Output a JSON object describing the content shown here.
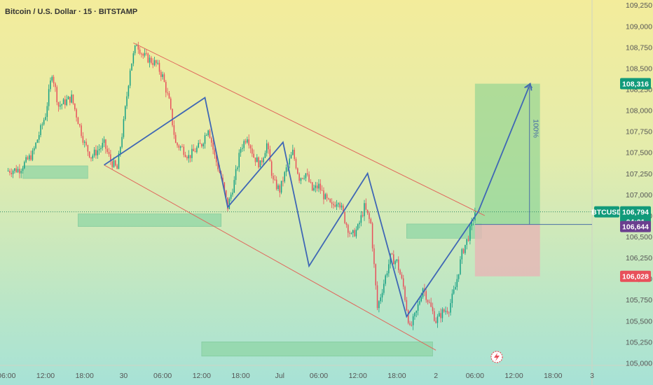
{
  "header": {
    "title": "Bitcoin / U.S. Dollar · 15 · BITSTAMP"
  },
  "colors": {
    "up": "#16a085",
    "down": "#e8505b",
    "channel": "#e0675c",
    "zigzag": "#3f67b5",
    "zone": "#8fd6a6",
    "target": "#7ecf8e",
    "stop": "#e7b5b5"
  },
  "chart_data": {
    "type": "candlestick",
    "symbol": "BTCUSD",
    "y_axis": {
      "ticks": [
        109250,
        109000,
        108750,
        108500,
        108250,
        108000,
        107750,
        107500,
        107250,
        107000,
        106750,
        106500,
        106250,
        106000,
        105750,
        105500,
        105250,
        105000
      ],
      "ylim": [
        104970,
        109310
      ]
    },
    "x_axis": {
      "labels": [
        "06:00",
        "12:00",
        "18:00",
        "30",
        "06:00",
        "12:00",
        "18:00",
        "Jul",
        "06:00",
        "12:00",
        "18:00",
        "2",
        "06:00",
        "12:00",
        "18:00",
        "3"
      ],
      "positions": [
        0,
        6,
        12,
        18,
        24,
        30,
        36,
        42,
        48,
        54,
        60,
        66,
        72,
        78,
        84,
        90
      ],
      "xlim": [
        -1,
        90
      ]
    },
    "price_tags": [
      {
        "label": "108,316",
        "value": 108316,
        "color": "#119a7a"
      },
      {
        "label": "BTCUSD",
        "value": 106794,
        "color": "#119a7a"
      },
      {
        "label": "106,794",
        "value": 106794,
        "color": "#119a7a"
      },
      {
        "label": "04:01",
        "value": 106700,
        "color": "#119a7a"
      },
      {
        "label": "106,644",
        "value": 106644,
        "color": "#6b3f8f"
      },
      {
        "label": "106,028",
        "value": 106028,
        "color": "#e8505b"
      }
    ],
    "current_price": 106794,
    "projection_label": "100%",
    "anchors": [
      [
        0,
        107280
      ],
      [
        2,
        107300
      ],
      [
        4,
        107480
      ],
      [
        6,
        107950
      ],
      [
        7,
        108450
      ],
      [
        8,
        108050
      ],
      [
        10,
        108150
      ],
      [
        12,
        107600
      ],
      [
        13,
        107450
      ],
      [
        15,
        107600
      ],
      [
        16,
        107400
      ],
      [
        17,
        107300
      ],
      [
        18,
        107850
      ],
      [
        19,
        108500
      ],
      [
        20,
        108800
      ],
      [
        21,
        108650
      ],
      [
        23,
        108550
      ],
      [
        24,
        108400
      ],
      [
        25,
        108100
      ],
      [
        26,
        107600
      ],
      [
        27,
        107550
      ],
      [
        28,
        107450
      ],
      [
        30,
        107600
      ],
      [
        31,
        107800
      ],
      [
        32,
        107450
      ],
      [
        33,
        107200
      ],
      [
        34,
        106850
      ],
      [
        35,
        107150
      ],
      [
        36,
        107550
      ],
      [
        37,
        107700
      ],
      [
        38,
        107450
      ],
      [
        39,
        107350
      ],
      [
        40,
        107600
      ],
      [
        41,
        107150
      ],
      [
        42,
        107050
      ],
      [
        43,
        107300
      ],
      [
        44,
        107500
      ],
      [
        45,
        107200
      ],
      [
        46,
        107250
      ],
      [
        47,
        107050
      ],
      [
        48,
        107100
      ],
      [
        49,
        106950
      ],
      [
        50,
        106850
      ],
      [
        51,
        106950
      ],
      [
        52,
        106700
      ],
      [
        53,
        106500
      ],
      [
        54,
        106600
      ],
      [
        55,
        106850
      ],
      [
        56,
        106650
      ],
      [
        57,
        105650
      ],
      [
        58,
        105950
      ],
      [
        59,
        106250
      ],
      [
        60,
        106200
      ],
      [
        61,
        105900
      ],
      [
        62,
        105400
      ],
      [
        63,
        105600
      ],
      [
        64,
        105900
      ],
      [
        65,
        105700
      ],
      [
        66,
        105500
      ],
      [
        67,
        105600
      ],
      [
        68,
        105650
      ],
      [
        69,
        105900
      ],
      [
        70,
        106300
      ],
      [
        71,
        106500
      ],
      [
        72,
        106794
      ]
    ],
    "channel_lines": [
      [
        [
          19.5,
          108800
        ],
        [
          73.5,
          106750
        ]
      ],
      [
        [
          15,
          107350
        ],
        [
          66,
          105150
        ]
      ]
    ],
    "zigzag": [
      [
        15,
        107350
      ],
      [
        30.5,
        108150
      ],
      [
        34,
        106850
      ],
      [
        42.5,
        107620
      ],
      [
        46.5,
        106150
      ],
      [
        55.5,
        107250
      ],
      [
        61.5,
        105550
      ],
      [
        72.5,
        106794
      ],
      [
        80.5,
        108316
      ]
    ],
    "zones": [
      [
        2.5,
        12.5,
        107340,
        107190
      ],
      [
        11,
        33,
        106770,
        106620
      ],
      [
        30,
        65.5,
        105250,
        105080
      ],
      [
        61.5,
        73,
        106650,
        106480
      ]
    ],
    "target_box": [
      72,
      82,
      108316,
      106644
    ],
    "stop_box": [
      72,
      82,
      106644,
      106028
    ]
  }
}
